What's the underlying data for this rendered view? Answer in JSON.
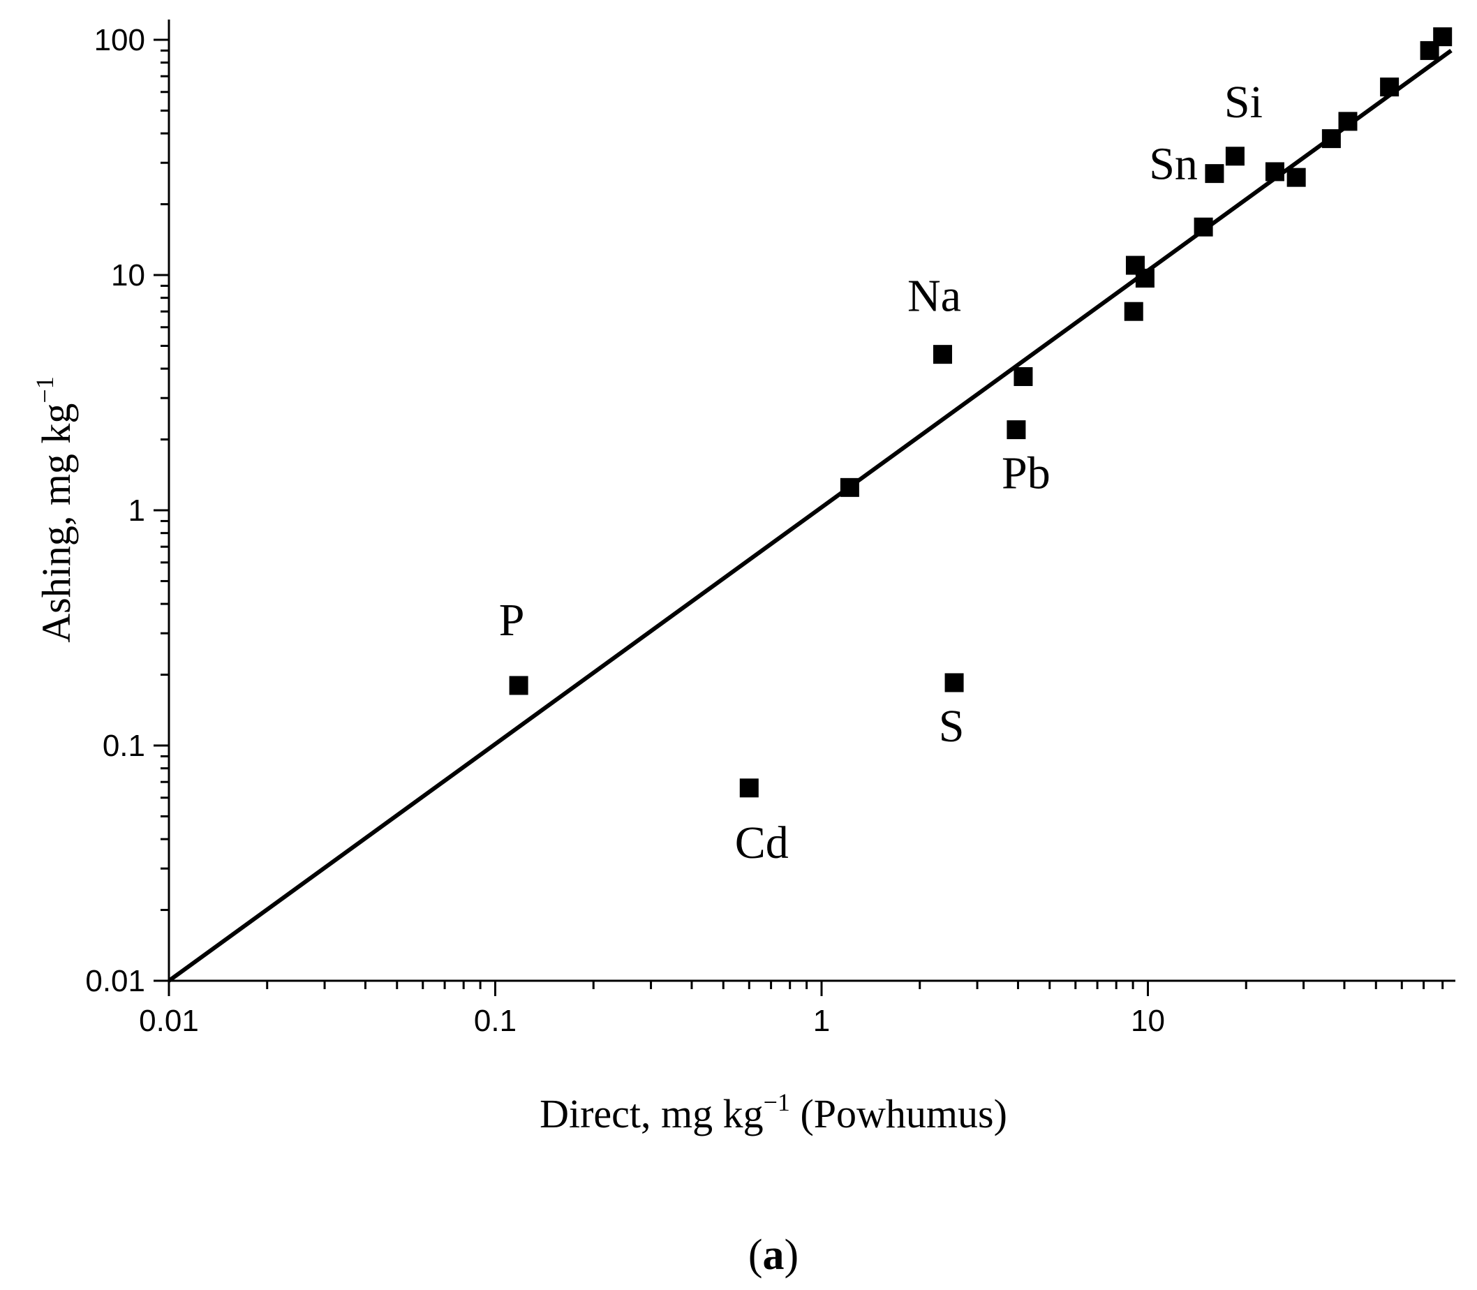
{
  "chart_data": {
    "type": "scatter",
    "title": "",
    "xlabel": {
      "main": "Direct, mg kg",
      "sup": "−1",
      "tail": " (Powhumus)"
    },
    "ylabel": {
      "main": "Ashing, mg kg",
      "sup": "−1"
    },
    "x_scale": "log",
    "y_scale": "log",
    "xlim": [
      0.01,
      85
    ],
    "ylim": [
      0.01,
      125
    ],
    "x_ticks": [
      {
        "value": 0.01,
        "label": "0.01"
      },
      {
        "value": 0.1,
        "label": "0.1"
      },
      {
        "value": 1,
        "label": "1"
      },
      {
        "value": 10,
        "label": "10"
      }
    ],
    "y_ticks": [
      {
        "value": 0.01,
        "label": "0.01"
      },
      {
        "value": 0.1,
        "label": "0.1"
      },
      {
        "value": 1,
        "label": "1"
      },
      {
        "value": 10,
        "label": "10"
      },
      {
        "value": 100,
        "label": "100"
      }
    ],
    "grid": false,
    "series": [
      {
        "marker": "square",
        "color": "#000000",
        "points": [
          {
            "x": 0.118,
            "y": 0.18,
            "label": "P"
          },
          {
            "x": 0.6,
            "y": 0.066,
            "label": "Cd"
          },
          {
            "x": 1.22,
            "y": 1.25
          },
          {
            "x": 2.35,
            "y": 4.6,
            "label": "Na"
          },
          {
            "x": 2.55,
            "y": 0.185,
            "label": "S"
          },
          {
            "x": 3.95,
            "y": 2.2,
            "label": "Pb"
          },
          {
            "x": 4.15,
            "y": 3.7
          },
          {
            "x": 9.05,
            "y": 7.0
          },
          {
            "x": 9.15,
            "y": 11.0
          },
          {
            "x": 9.8,
            "y": 9.7
          },
          {
            "x": 14.8,
            "y": 16.0
          },
          {
            "x": 16.0,
            "y": 27.0,
            "label": "Sn"
          },
          {
            "x": 18.5,
            "y": 32.0,
            "label": "Si"
          },
          {
            "x": 24.5,
            "y": 27.5
          },
          {
            "x": 28.5,
            "y": 26.0
          },
          {
            "x": 36.5,
            "y": 38.0
          },
          {
            "x": 41.0,
            "y": 45.0
          },
          {
            "x": 55.0,
            "y": 63.0
          },
          {
            "x": 73.0,
            "y": 90.0
          },
          {
            "x": 80.0,
            "y": 103.0
          }
        ]
      }
    ],
    "fit_line": {
      "from": [
        0.01,
        0.01
      ],
      "to": [
        85,
        90
      ],
      "color": "#000000"
    }
  },
  "caption": {
    "open": "(",
    "letter": "a",
    "close": ")"
  }
}
